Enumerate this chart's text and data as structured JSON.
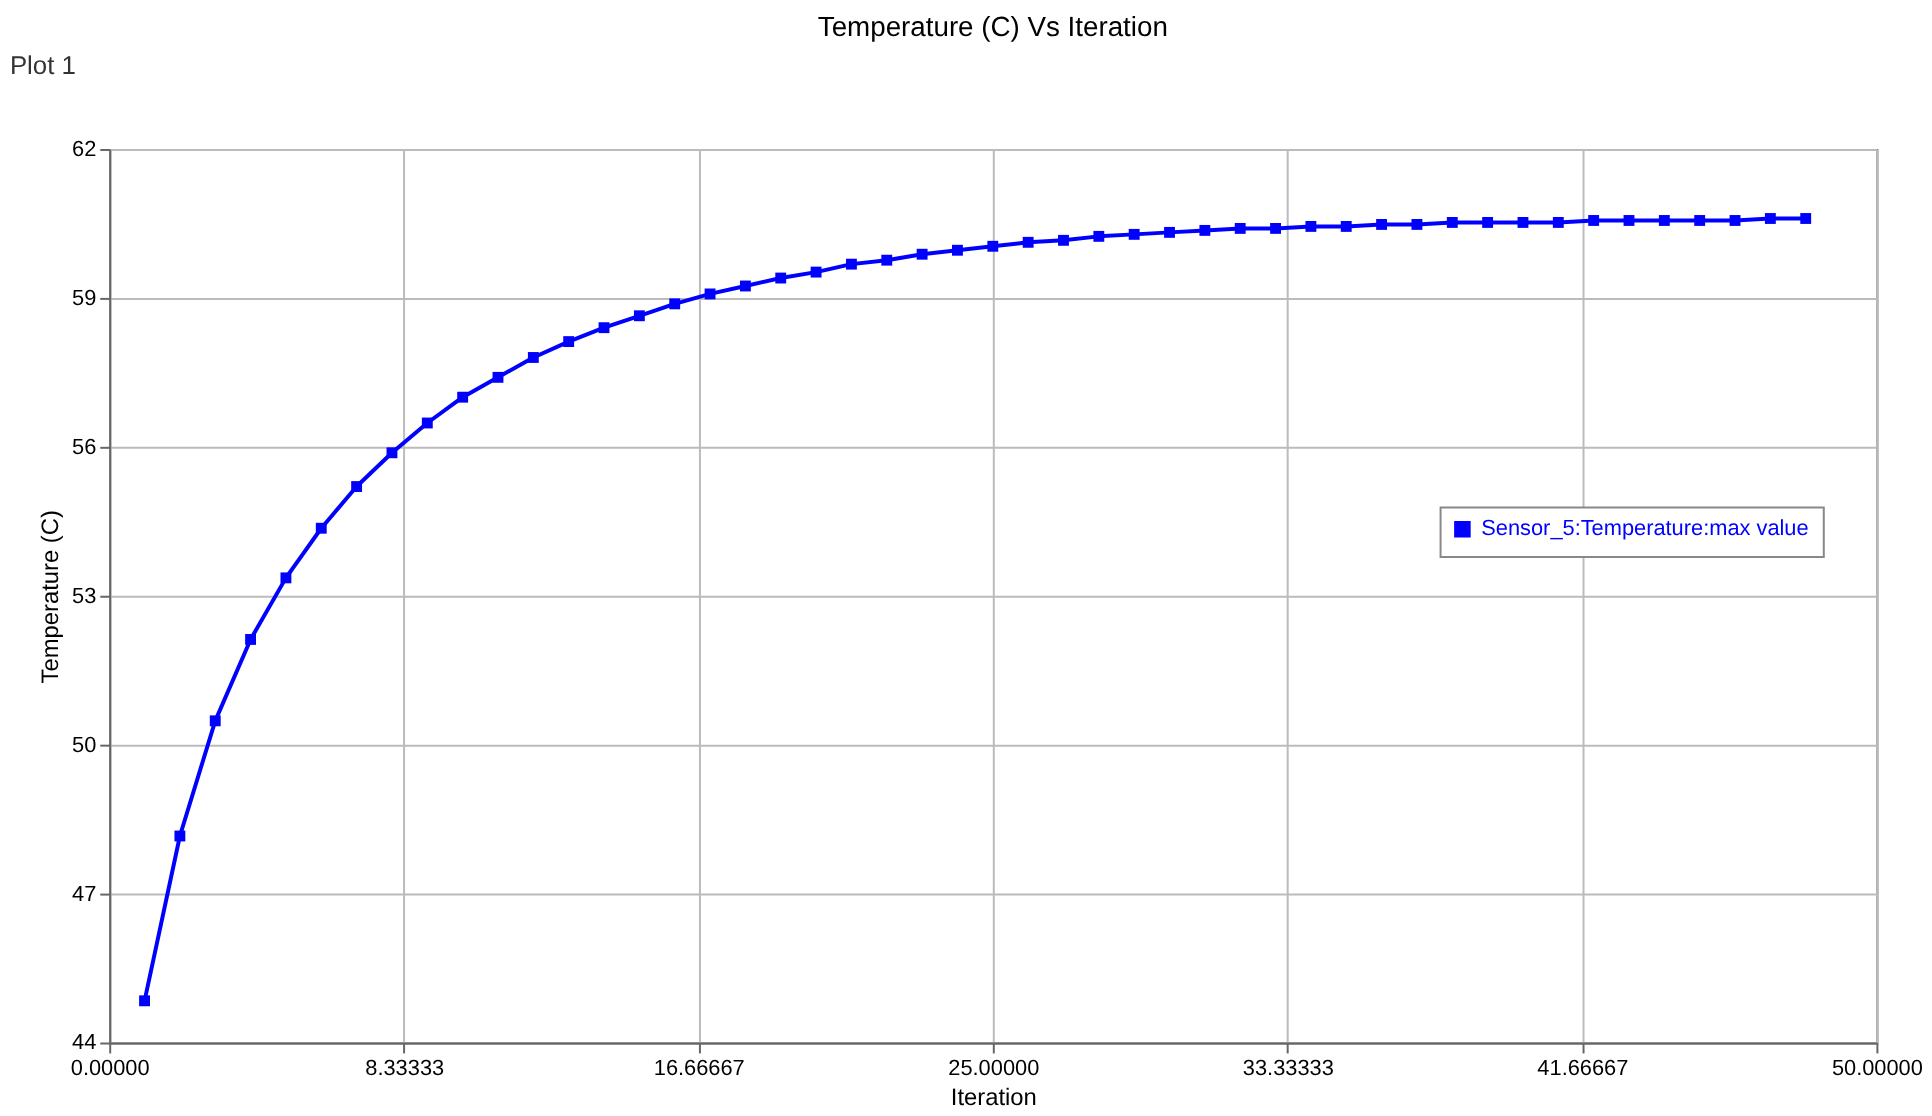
{
  "chart_data": {
    "type": "line",
    "title": "Temperature (C) Vs Iteration",
    "xlabel": "Iteration",
    "ylabel": "Temperature (C)",
    "annotations": [
      "Plot 1"
    ],
    "x": [
      1,
      2,
      3,
      4,
      5,
      6,
      7,
      8,
      9,
      10,
      11,
      12,
      13,
      14,
      15,
      16,
      17,
      18,
      19,
      20,
      21,
      22,
      23,
      24,
      25,
      26,
      27,
      28,
      29,
      30,
      31,
      32,
      33,
      34,
      35,
      36,
      37,
      38,
      39,
      40,
      41,
      42,
      43,
      44,
      45,
      46,
      47,
      48
    ],
    "series": [
      {
        "name": "Sensor_5:Temperature:max value",
        "color": "#0000ff",
        "values": [
          44.84,
          48.16,
          50.48,
          52.12,
          53.36,
          54.36,
          55.2,
          55.88,
          56.48,
          57.0,
          57.4,
          57.8,
          58.12,
          58.4,
          58.64,
          58.88,
          59.08,
          59.24,
          59.4,
          59.52,
          59.68,
          59.76,
          59.88,
          59.96,
          60.04,
          60.12,
          60.16,
          60.24,
          60.28,
          60.32,
          60.36,
          60.4,
          60.4,
          60.44,
          60.44,
          60.48,
          60.48,
          60.52,
          60.52,
          60.52,
          60.52,
          60.56,
          60.56,
          60.56,
          60.56,
          60.56,
          60.6,
          60.6
        ]
      }
    ],
    "xlim": [
      0,
      50
    ],
    "xticks": [
      {
        "value": 0,
        "label": "0.00000"
      },
      {
        "value": 8.33333,
        "label": "8.33333"
      },
      {
        "value": 16.66667,
        "label": "16.66667"
      },
      {
        "value": 25,
        "label": "25.00000"
      },
      {
        "value": 33.33333,
        "label": "33.33333"
      },
      {
        "value": 41.66667,
        "label": "41.66667"
      },
      {
        "value": 50,
        "label": "50.00000"
      }
    ],
    "ylim": [
      44,
      62
    ],
    "yticks": [
      44,
      47,
      50,
      53,
      56,
      59,
      62
    ],
    "grid": true,
    "legend": "right",
    "marker": "square",
    "line_style": "solid"
  }
}
